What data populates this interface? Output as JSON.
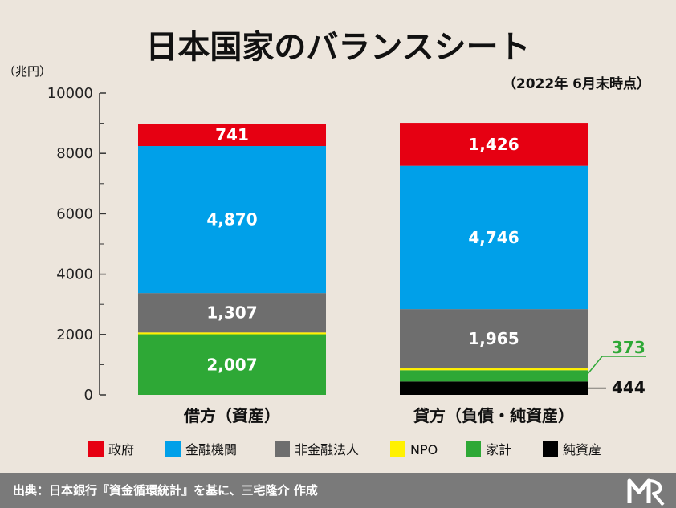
{
  "title": "日本国家のバランスシート",
  "unit_label": "（兆円）",
  "subtitle": "（2022年 6月末時点）",
  "footer": {
    "source": "出典：日本銀行『資金循環統計』を基に、三宅隆介 作成"
  },
  "colors": {
    "政府": "#e60012",
    "金融機関": "#00a0e9",
    "非金融法人": "#6e6e6e",
    "NPO": "#fff100",
    "家計": "#2ea836",
    "純資産": "#000000",
    "background": "#ece5dc",
    "footer_bg": "#7a7a7a"
  },
  "chart_data": {
    "type": "bar",
    "stacked": true,
    "ylim": [
      0,
      10000
    ],
    "yticks": [
      0,
      2000,
      4000,
      6000,
      8000,
      10000
    ],
    "ytick_labels": [
      "0",
      "2000",
      "4000",
      "6000",
      "8000",
      "10000"
    ],
    "grid": false,
    "categories": [
      "借方（資産）",
      "貸方（負債・純資産）"
    ],
    "series": [
      {
        "name": "家計",
        "values": [
          2007,
          373
        ],
        "labels": [
          "2,007",
          "373"
        ],
        "label_color": "#ffffff"
      },
      {
        "name": "NPO",
        "values": [
          60,
          60
        ],
        "labels": [
          "",
          ""
        ],
        "label_color": "#111111"
      },
      {
        "name": "非金融法人",
        "values": [
          1307,
          1965
        ],
        "labels": [
          "1,307",
          "1,965"
        ],
        "label_color": "#ffffff"
      },
      {
        "name": "金融機関",
        "values": [
          4870,
          4746
        ],
        "labels": [
          "4,870",
          "4,746"
        ],
        "label_color": "#ffffff"
      },
      {
        "name": "政府",
        "values": [
          741,
          1426
        ],
        "labels": [
          "741",
          "1,426"
        ],
        "label_color": "#ffffff"
      },
      {
        "name": "純資産",
        "values": [
          0,
          444
        ],
        "labels": [
          "",
          "444"
        ],
        "label_color": "#111111"
      }
    ],
    "stack_order": [
      [
        "家計",
        "NPO",
        "非金融法人",
        "金融機関",
        "政府"
      ],
      [
        "純資産",
        "家計",
        "NPO",
        "非金融法人",
        "金融機関",
        "政府"
      ]
    ],
    "callouts": [
      {
        "series": "家計",
        "bar": 1,
        "text": "373",
        "color": "#2ea836"
      },
      {
        "series": "純資産",
        "bar": 1,
        "text": "444",
        "color": "#111111"
      }
    ],
    "legend": {
      "position": "bottom",
      "order": [
        "政府",
        "金融機関",
        "非金融法人",
        "NPO",
        "家計",
        "純資産"
      ]
    }
  }
}
